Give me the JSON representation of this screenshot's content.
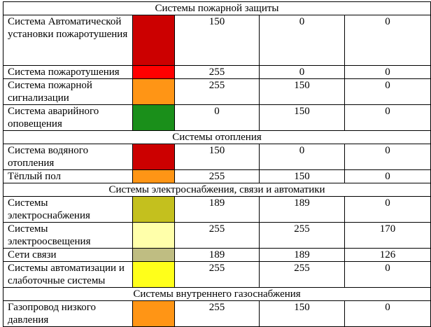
{
  "groups": [
    {
      "title": "Системы пожарной защиты",
      "rows": [
        {
          "name": "Система Автоматической установки пожаротушения",
          "color": "#CC0000",
          "r": "150",
          "g": "0",
          "b": "0",
          "lines": 4
        },
        {
          "name": "Система пожаротушения",
          "color": "#FF0000",
          "r": "255",
          "g": "0",
          "b": "0",
          "lines": 1
        },
        {
          "name": "Система пожарной сигнализации",
          "color": "#FF9515",
          "r": "255",
          "g": "150",
          "b": "0",
          "lines": 2
        },
        {
          "name": "Система аварийного оповещения",
          "color": "#1A8F1A",
          "r": "0",
          "g": "150",
          "b": "0",
          "lines": 2
        }
      ]
    },
    {
      "title": "Системы отопления",
      "rows": [
        {
          "name": "Система водяного отопления",
          "color": "#CC0000",
          "r": "150",
          "g": "0",
          "b": "0",
          "lines": 2
        },
        {
          "name": "Тёплый пол",
          "color": "#FF9515",
          "r": "255",
          "g": "150",
          "b": "0",
          "lines": 1
        }
      ]
    },
    {
      "title": "Системы электроснабжения, связи и автоматики",
      "rows": [
        {
          "name": "Системы электроснабжения",
          "color": "#C4C01E",
          "r": "189",
          "g": "189",
          "b": "0",
          "lines": 2
        },
        {
          "name": "Системы электроосвещения",
          "color": "#FFFFAA",
          "r": "255",
          "g": "255",
          "b": "170",
          "lines": 2
        },
        {
          "name": "Сети связи",
          "color": "#BFBD82",
          "r": "189",
          "g": "189",
          "b": "126",
          "lines": 1
        },
        {
          "name": "Системы автоматизации и слаботочные системы",
          "color": "#FFFF1A",
          "r": "255",
          "g": "255",
          "b": "0",
          "lines": 2
        }
      ]
    },
    {
      "title": "Системы внутреннего газоснабжения",
      "rows": [
        {
          "name": "Газопровод низкого давления",
          "color": "#FF9515",
          "r": "255",
          "g": "150",
          "b": "0",
          "lines": 2
        }
      ]
    }
  ]
}
